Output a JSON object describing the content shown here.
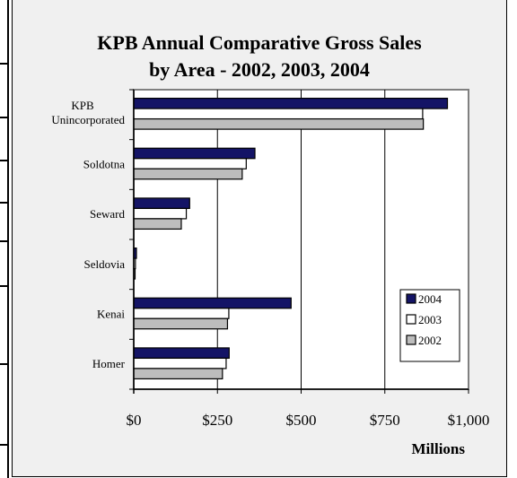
{
  "chart_data": {
    "type": "bar",
    "orientation": "horizontal",
    "title_line1": "KPB Annual Comparative Gross Sales",
    "title_line2": "by Area - 2002, 2003, 2004",
    "xlabel": "Millions",
    "xlim": [
      0,
      1000
    ],
    "xticks": [
      0,
      250,
      500,
      750,
      1000
    ],
    "xtick_labels": [
      "$0",
      "$250",
      "$500",
      "$750",
      "$1,000"
    ],
    "grid": true,
    "legend_position": "right",
    "categories": [
      {
        "line1": "KPB",
        "line2": "Unincorporated"
      },
      {
        "line1": "Soldotna",
        "line2": ""
      },
      {
        "line1": "Seward",
        "line2": ""
      },
      {
        "line1": "Seldovia",
        "line2": ""
      },
      {
        "line1": "Kenai",
        "line2": ""
      },
      {
        "line1": "Homer",
        "line2": ""
      }
    ],
    "series": [
      {
        "name": "2004",
        "color": "#141466",
        "values": [
          937,
          362,
          167,
          8,
          470,
          285
        ]
      },
      {
        "name": "2003",
        "color": "#ffffff",
        "values": [
          863,
          336,
          157,
          5,
          284,
          276
        ]
      },
      {
        "name": "2002",
        "color": "#bdbdbd",
        "values": [
          865,
          324,
          142,
          4,
          280,
          265
        ]
      }
    ]
  }
}
